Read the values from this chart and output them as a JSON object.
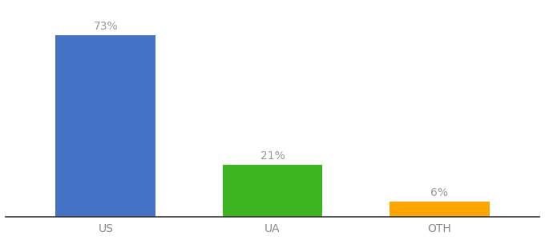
{
  "categories": [
    "US",
    "UA",
    "OTH"
  ],
  "values": [
    73,
    21,
    6
  ],
  "bar_colors": [
    "#4472C4",
    "#3CB521",
    "#FFA500"
  ],
  "labels": [
    "73%",
    "21%",
    "6%"
  ],
  "background_color": "#ffffff",
  "ylim": [
    0,
    85
  ],
  "label_fontsize": 10,
  "tick_fontsize": 10,
  "label_color": "#999999",
  "tick_color": "#888888",
  "bar_width": 0.6,
  "figsize": [
    6.8,
    3.0
  ],
  "dpi": 100
}
